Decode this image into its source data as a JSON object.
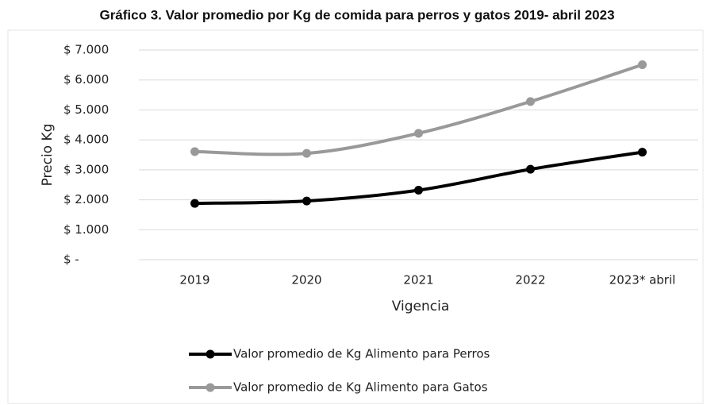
{
  "chart_data": {
    "type": "line",
    "title": "Gráfico 3. Valor promedio por Kg de comida para perros y gatos 2019- abril 2023",
    "y_label": "Precio Kg",
    "x_label": "Vigencia",
    "categories": [
      "2019",
      "2020",
      "2021",
      "2022",
      "2023* abril"
    ],
    "series": [
      {
        "name": "Valor promedio de Kg Alimento para Perros",
        "color": "#000000",
        "values": [
          1880,
          1960,
          2320,
          3020,
          3590
        ]
      },
      {
        "name": "Valor promedio de Kg Alimento para Gatos",
        "color": "#999999",
        "values": [
          3610,
          3550,
          4220,
          5280,
          6510
        ]
      }
    ],
    "ylim": [
      0,
      7000
    ],
    "yticks": [
      {
        "value": 0,
        "label": "$ -"
      },
      {
        "value": 1000,
        "label": "$ 1.000"
      },
      {
        "value": 2000,
        "label": "$ 2.000"
      },
      {
        "value": 3000,
        "label": "$ 3.000"
      },
      {
        "value": 4000,
        "label": "$ 4.000"
      },
      {
        "value": 5000,
        "label": "$ 5.000"
      },
      {
        "value": 6000,
        "label": "$ 6.000"
      },
      {
        "value": 7000,
        "label": "$ 7.000"
      }
    ],
    "grid": true,
    "legend": "bottom"
  }
}
